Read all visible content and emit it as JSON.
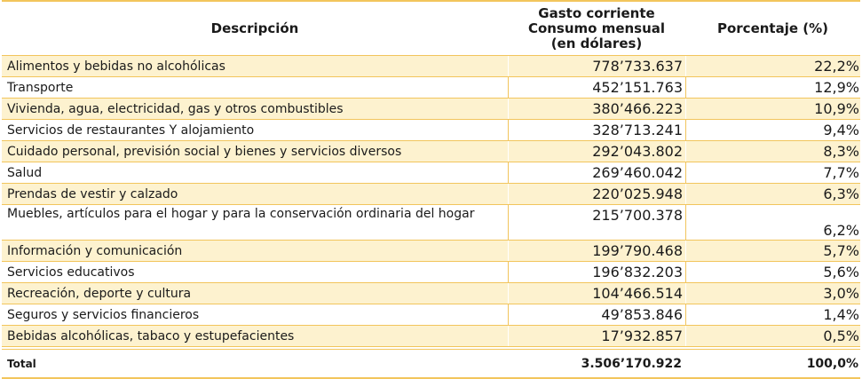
{
  "header": {
    "descripcion": "Descripción",
    "gasto_line1": "Gasto corriente",
    "gasto_line2": "Consumo  mensual",
    "gasto_line3": "(en dólares)",
    "porcentaje": "Porcentaje (%)"
  },
  "rows": [
    {
      "desc": "Alimentos  y bebidas no alcohólicas",
      "gasto": "778’733.637",
      "pct": "22,2%"
    },
    {
      "desc": "Transporte",
      "gasto": "452’151.763",
      "pct": "12,9%"
    },
    {
      "desc": "Vivienda, agua, electricidad, gas y otros combustibles",
      "gasto": "380’466.223",
      "pct": "10,9%"
    },
    {
      "desc": "Servicios de restaurantes Y alojamiento",
      "gasto": "328’713.241",
      "pct": "9,4%"
    },
    {
      "desc": "Cuidado personal, previsión social y bienes y servicios diversos",
      "gasto": "292’043.802",
      "pct": "8,3%"
    },
    {
      "desc": "Salud",
      "gasto": "269’460.042",
      "pct": "7,7%"
    },
    {
      "desc": "Prendas de vestir y calzado",
      "gasto": "220’025.948",
      "pct": "6,3%"
    },
    {
      "desc": "Muebles, artículos para el hogar y para la conservación ordinaria del hogar",
      "gasto": "215’700.378",
      "pct": "6,2%"
    },
    {
      "desc": "Información y comunicación",
      "gasto": "199’790.468",
      "pct": "5,7%"
    },
    {
      "desc": "Servicios educativos",
      "gasto": "196’832.203",
      "pct": "5,6%"
    },
    {
      "desc": "Recreación, deporte y cultura",
      "gasto": "104’466.514",
      "pct": "3,0%"
    },
    {
      "desc": "Seguros y servicios financieros",
      "gasto": "49’853.846",
      "pct": "1,4%"
    },
    {
      "desc": "Bebidas alcohólicas, tabaco y estupefacientes",
      "gasto": "17’932.857",
      "pct": "0,5%"
    }
  ],
  "total": {
    "label": "Total",
    "gasto": "3.506’170.922",
    "pct": "100,0%"
  },
  "colors": {
    "accent_border": "#f2c55c",
    "stripe": "#fdf2cf"
  }
}
